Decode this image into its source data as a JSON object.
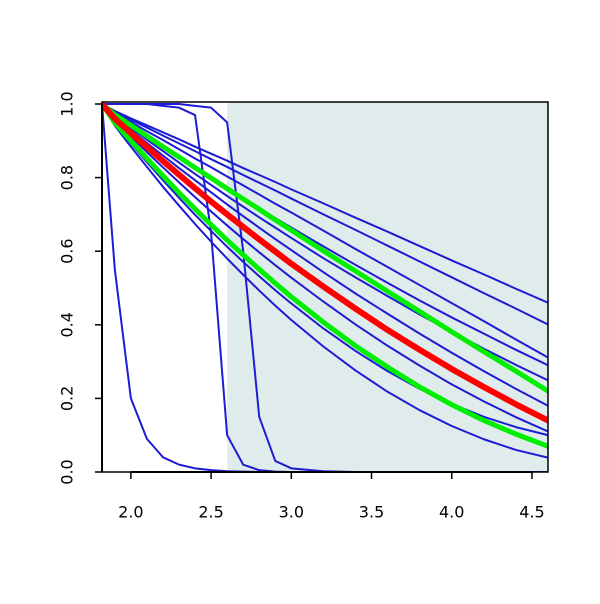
{
  "chart_data": {
    "type": "line",
    "x": [
      1.82,
      1.9,
      2.0,
      2.1,
      2.2,
      2.3,
      2.4,
      2.5,
      2.6,
      2.7,
      2.8,
      2.9,
      3.0,
      3.2,
      3.4,
      3.6,
      3.8,
      4.0,
      4.2,
      4.4,
      4.6
    ],
    "xlim": [
      1.82,
      4.6
    ],
    "ylim": [
      0,
      1
    ],
    "xticks": [
      {
        "value": 2,
        "label": "2.0"
      },
      2.5,
      {
        "value": 3,
        "label": "3.0"
      },
      3.5,
      {
        "value": 4,
        "label": "4.0"
      },
      4.5
    ],
    "yticks": [
      {
        "value": 0,
        "label": "0.0"
      },
      0.2,
      0.4,
      0.6,
      0.8,
      {
        "value": 1,
        "label": "1.0"
      }
    ],
    "highlight": {
      "x": [
        2.6,
        4.6
      ],
      "color": "#e0ecec"
    },
    "series": [
      {
        "color": "#1c1cd4",
        "line_width": 2,
        "values": [
          1,
          0.981,
          0.961,
          0.942,
          0.923,
          0.904,
          0.884,
          0.865,
          0.846,
          0.826,
          0.807,
          0.788,
          0.768,
          0.73,
          0.691,
          0.653,
          0.614,
          0.575,
          0.537,
          0.498,
          0.46
        ]
      },
      {
        "color": "#1c1cd4",
        "line_width": 2,
        "values": [
          1,
          0.979,
          0.957,
          0.936,
          0.914,
          0.893,
          0.872,
          0.85,
          0.829,
          0.807,
          0.786,
          0.765,
          0.743,
          0.7,
          0.658,
          0.615,
          0.572,
          0.529,
          0.486,
          0.444,
          0.401
        ]
      },
      {
        "color": "#1c1cd4",
        "line_width": 2,
        "values": [
          1,
          0.975,
          0.951,
          0.926,
          0.902,
          0.877,
          0.852,
          0.828,
          0.803,
          0.779,
          0.754,
          0.729,
          0.705,
          0.656,
          0.606,
          0.557,
          0.508,
          0.459,
          0.41,
          0.36,
          0.311
        ]
      },
      {
        "color": "#1c1cd4",
        "line_width": 2,
        "values": [
          1,
          0.97,
          0.941,
          0.911,
          0.883,
          0.854,
          0.826,
          0.798,
          0.771,
          0.743,
          0.717,
          0.69,
          0.664,
          0.613,
          0.563,
          0.514,
          0.466,
          0.42,
          0.376,
          0.332,
          0.29
        ]
      },
      {
        "color": "#1c1cd4",
        "line_width": 2,
        "values": [
          1,
          0.967,
          0.935,
          0.903,
          0.872,
          0.841,
          0.81,
          0.78,
          0.75,
          0.721,
          0.692,
          0.664,
          0.636,
          0.581,
          0.529,
          0.478,
          0.428,
          0.381,
          0.335,
          0.291,
          0.249
        ]
      },
      {
        "color": "#1c1cd4",
        "line_width": 2,
        "values": [
          1,
          0.964,
          0.929,
          0.894,
          0.86,
          0.826,
          0.793,
          0.76,
          0.727,
          0.695,
          0.664,
          0.633,
          0.603,
          0.543,
          0.485,
          0.43,
          0.376,
          0.324,
          0.274,
          0.226,
          0.18
        ]
      },
      {
        "color": "#1c1cd4",
        "line_width": 2,
        "values": [
          1,
          0.956,
          0.912,
          0.869,
          0.828,
          0.787,
          0.747,
          0.708,
          0.67,
          0.633,
          0.597,
          0.562,
          0.528,
          0.463,
          0.401,
          0.343,
          0.289,
          0.238,
          0.192,
          0.149,
          0.11
        ]
      },
      {
        "color": "#1c1cd4",
        "line_width": 2,
        "values": [
          1,
          0.946,
          0.893,
          0.842,
          0.793,
          0.745,
          0.699,
          0.655,
          0.612,
          0.571,
          0.532,
          0.494,
          0.458,
          0.39,
          0.329,
          0.274,
          0.226,
          0.185,
          0.15,
          0.122,
          0.1
        ]
      },
      {
        "color": "#1c1cd4",
        "line_width": 2,
        "values": [
          1,
          0.941,
          0.884,
          0.829,
          0.775,
          0.724,
          0.674,
          0.626,
          0.58,
          0.536,
          0.493,
          0.452,
          0.413,
          0.341,
          0.276,
          0.218,
          0.168,
          0.125,
          0.089,
          0.06,
          0.039
        ]
      },
      {
        "color": "#1c1cd4",
        "line_width": 2,
        "values": [
          1,
          0.55,
          0.2,
          0.09,
          0.04,
          0.02,
          0.01,
          0.005,
          0.002,
          0.001,
          0,
          0,
          0,
          0,
          0,
          0,
          0,
          0,
          0,
          0,
          0
        ]
      },
      {
        "color": "#1c1cd4",
        "line_width": 2,
        "values": [
          1,
          1,
          1,
          1,
          0.995,
          0.99,
          0.97,
          0.65,
          0.1,
          0.02,
          0.005,
          0.001,
          0,
          0,
          0,
          0,
          0,
          0,
          0,
          0,
          0
        ]
      },
      {
        "color": "#1c1cd4",
        "line_width": 2,
        "values": [
          1,
          1,
          1,
          1,
          1,
          1,
          0.995,
          0.99,
          0.95,
          0.6,
          0.15,
          0.03,
          0.01,
          0.002,
          0,
          0,
          0,
          0,
          0,
          0,
          0
        ]
      },
      {
        "color": "#00ee00",
        "line_width": 5,
        "values": [
          1,
          0.971,
          0.942,
          0.913,
          0.884,
          0.856,
          0.827,
          0.799,
          0.77,
          0.742,
          0.714,
          0.685,
          0.657,
          0.601,
          0.546,
          0.491,
          0.436,
          0.381,
          0.327,
          0.274,
          0.22
        ]
      },
      {
        "color": "#00ee00",
        "line_width": 5,
        "values": [
          1,
          0.949,
          0.9,
          0.852,
          0.805,
          0.759,
          0.715,
          0.672,
          0.63,
          0.59,
          0.551,
          0.513,
          0.476,
          0.407,
          0.343,
          0.285,
          0.231,
          0.183,
          0.14,
          0.103,
          0.07
        ]
      },
      {
        "color": "#ff0000",
        "line_width": 6,
        "values": [
          1,
          0.96,
          0.921,
          0.883,
          0.845,
          0.808,
          0.771,
          0.735,
          0.7,
          0.666,
          0.632,
          0.599,
          0.566,
          0.504,
          0.444,
          0.386,
          0.332,
          0.28,
          0.231,
          0.184,
          0.14
        ]
      }
    ]
  }
}
